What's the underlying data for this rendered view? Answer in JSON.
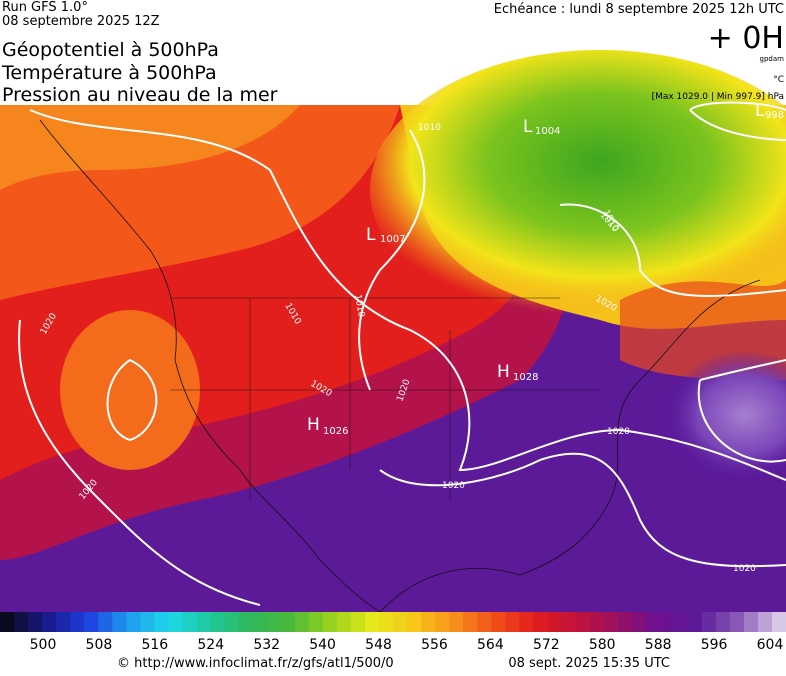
{
  "header": {
    "run": "Run GFS 1.0°",
    "date": "08 septembre 2025 12Z",
    "echeance": "Echéance : lundi 8 septembre 2025 12h UTC",
    "titles": [
      "Géopotentiel à 500hPa",
      "Température à 500hPa",
      "Pression au niveau de la mer"
    ],
    "hour": "+ 0H",
    "unit_geo": "gpdam",
    "unit_temp": "°C",
    "maxmin": "[Max 1029.0 | Min 997.9] hPa"
  },
  "map": {
    "centers": [
      {
        "letter": "L",
        "value": "1004"
      },
      {
        "letter": "L",
        "value": "1007"
      },
      {
        "letter": "H",
        "value": "1028"
      },
      {
        "letter": "H",
        "value": "1026"
      },
      {
        "letter": "L",
        "value": "998"
      }
    ],
    "isobar_labels": [
      "1010",
      "1010",
      "1010",
      "1010",
      "1020",
      "1020",
      "1020",
      "1020",
      "1020",
      "1020",
      "1020",
      "1020",
      "1010",
      "1020"
    ]
  },
  "colorbar": {
    "ticks": [
      500,
      508,
      516,
      524,
      532,
      540,
      548,
      556,
      564,
      572,
      580,
      588,
      596,
      604
    ]
  },
  "footer": {
    "url": "© http://www.infoclimat.fr/z/gfs/atl1/500/0",
    "timestamp": "08 sept. 2025 15:35 UTC"
  }
}
